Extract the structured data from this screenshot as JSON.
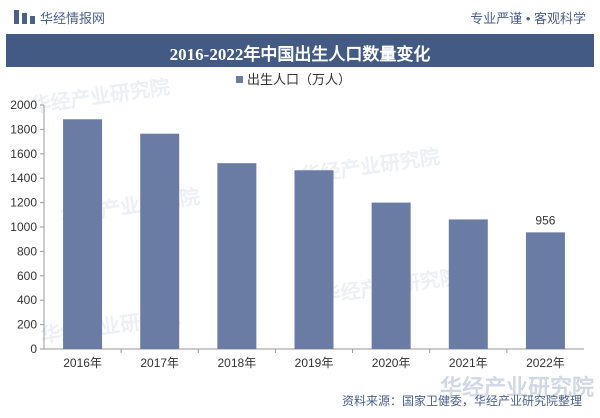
{
  "header": {
    "brand": "华经情报网",
    "slogan": "专业严谨 • 客观科学"
  },
  "source": "资料来源：国家卫健委，华经产业研究院整理",
  "colors": {
    "bar": "#6a7ca4",
    "band": "#435a85",
    "text": "#333333"
  },
  "chart_data": {
    "type": "bar",
    "title": "2016-2022年中国出生人口数量变化",
    "categories": [
      "2016年",
      "2017年",
      "2018年",
      "2019年",
      "2020年",
      "2021年",
      "2022年"
    ],
    "series": [
      {
        "name": "出生人口（万人）",
        "values": [
          1883,
          1765,
          1523,
          1465,
          1200,
          1062,
          956
        ]
      }
    ],
    "data_labels": [
      null,
      null,
      null,
      null,
      null,
      null,
      "956"
    ],
    "yticks": [
      "0",
      "200",
      "400",
      "600",
      "800",
      "1000",
      "1200",
      "1400",
      "1600",
      "1800",
      "2000"
    ],
    "ylim": [
      0,
      2000
    ],
    "legend": "top-center",
    "grid": false
  }
}
